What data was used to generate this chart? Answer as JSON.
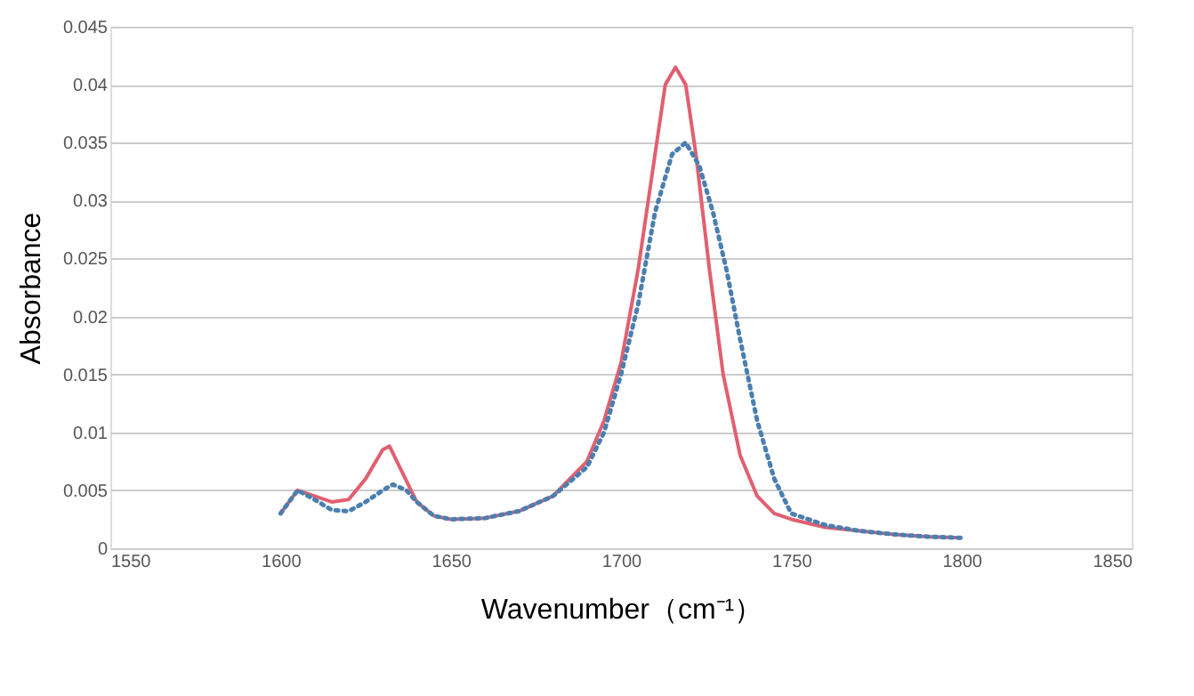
{
  "chart_data": {
    "type": "line",
    "xlabel": "Wavenumber（cm⁻¹）",
    "ylabel": "Absorbance",
    "xlim": [
      1550,
      1850
    ],
    "xticks": [
      1550,
      1600,
      1650,
      1700,
      1750,
      1800,
      1850
    ],
    "ylim": [
      0,
      0.045
    ],
    "yticks": [
      0,
      0.005,
      0.01,
      0.015,
      0.02,
      0.025,
      0.03,
      0.035,
      0.04,
      0.045
    ],
    "grid": "y",
    "series": [
      {
        "color": "#e06070",
        "line_style": "solid",
        "x": [
          1600,
          1605,
          1610,
          1615,
          1620,
          1625,
          1630,
          1632,
          1635,
          1640,
          1645,
          1650,
          1660,
          1670,
          1680,
          1690,
          1695,
          1700,
          1705,
          1710,
          1713,
          1716,
          1719,
          1722,
          1726,
          1730,
          1735,
          1740,
          1745,
          1750,
          1760,
          1770,
          1780,
          1790,
          1800
        ],
        "values": [
          0.003,
          0.005,
          0.0045,
          0.004,
          0.0042,
          0.006,
          0.0085,
          0.0088,
          0.007,
          0.004,
          0.0028,
          0.0025,
          0.0026,
          0.0032,
          0.0045,
          0.0075,
          0.011,
          0.016,
          0.024,
          0.034,
          0.04,
          0.0415,
          0.04,
          0.034,
          0.024,
          0.015,
          0.008,
          0.0045,
          0.003,
          0.0025,
          0.0018,
          0.0015,
          0.0012,
          0.001,
          0.0009
        ]
      },
      {
        "color": "#4a7fb0",
        "line_style": "dotted",
        "x": [
          1600,
          1605,
          1610,
          1615,
          1620,
          1625,
          1630,
          1633,
          1637,
          1640,
          1645,
          1650,
          1660,
          1670,
          1680,
          1690,
          1695,
          1700,
          1705,
          1710,
          1715,
          1719,
          1723,
          1727,
          1731,
          1735,
          1740,
          1745,
          1750,
          1760,
          1770,
          1780,
          1790,
          1800
        ],
        "values": [
          0.003,
          0.005,
          0.0042,
          0.0033,
          0.0032,
          0.004,
          0.005,
          0.0055,
          0.005,
          0.004,
          0.0028,
          0.0025,
          0.0026,
          0.0032,
          0.0045,
          0.007,
          0.01,
          0.015,
          0.021,
          0.029,
          0.034,
          0.035,
          0.033,
          0.029,
          0.024,
          0.018,
          0.011,
          0.006,
          0.003,
          0.002,
          0.0015,
          0.0012,
          0.001,
          0.0009
        ]
      }
    ]
  }
}
